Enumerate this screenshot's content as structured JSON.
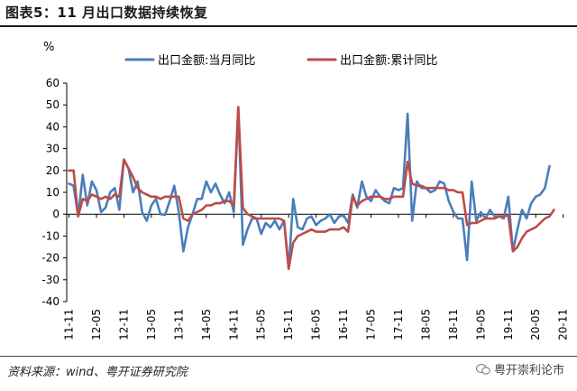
{
  "header": {
    "title": "图表5：11 月出口数据持续恢复"
  },
  "footer": {
    "source": "资料来源：wind、粤开证券研究院",
    "watermark": "粤开崇利论市"
  },
  "chart_data": {
    "type": "line",
    "unit": "%",
    "ylim": [
      -40,
      60
    ],
    "yticks": [
      60,
      50,
      40,
      30,
      20,
      10,
      0,
      -10,
      -20,
      -30,
      -40
    ],
    "x_tick_labels": [
      "11-11",
      "12-05",
      "12-11",
      "13-05",
      "13-11",
      "14-05",
      "14-11",
      "15-05",
      "15-11",
      "16-05",
      "16-11",
      "17-05",
      "17-11",
      "18-05",
      "18-11",
      "19-05",
      "19-11",
      "20-05",
      "20-11"
    ],
    "x_tick_interval_months": 6,
    "legend_position": "top",
    "grid": false,
    "colors": {
      "monthly": "#4a7ebb",
      "cumulative": "#be4b48"
    },
    "series": [
      {
        "name": "出口金额:当月同比",
        "values": [
          14,
          13,
          -1,
          18,
          4,
          15,
          11,
          1,
          3,
          10,
          12,
          2,
          25,
          21,
          10,
          15,
          1,
          -3,
          4,
          7,
          0,
          -0.3,
          6,
          13,
          1,
          -17,
          -6,
          0,
          7,
          7,
          15,
          10,
          14,
          9,
          5,
          10,
          1,
          49,
          -14,
          -7,
          -2,
          -2,
          -9,
          -4,
          -6,
          -3,
          -7,
          -3,
          -25,
          7,
          -6,
          -7,
          -2,
          -1,
          -5,
          -3,
          -2,
          0,
          -4,
          -1,
          -0.5,
          -4,
          9,
          3,
          15,
          8,
          6,
          11,
          8,
          6,
          5,
          12,
          11,
          12,
          46,
          -3,
          15,
          12,
          12,
          10,
          11,
          15,
          14,
          6,
          1,
          -2,
          -2,
          -21,
          15,
          -3,
          1,
          -2,
          2,
          -1,
          -1,
          -2,
          8,
          -17,
          -7,
          2,
          -2,
          5,
          8,
          9,
          12,
          22
        ]
      },
      {
        "name": "出口金额:累计同比",
        "values": [
          20,
          20,
          -1,
          7,
          6,
          9,
          8,
          7,
          8,
          7,
          9,
          8,
          25,
          21,
          17,
          12,
          10,
          9,
          8,
          8,
          7,
          8,
          8,
          8,
          8,
          -2,
          -3,
          0,
          1,
          2,
          4,
          4,
          5,
          5,
          6,
          6,
          4,
          49,
          3,
          0,
          -1,
          -2,
          -2,
          -2,
          -2,
          -2,
          -2,
          -3,
          -25,
          -13,
          -10,
          -9,
          -8,
          -7,
          -8,
          -8,
          -8,
          -7,
          -7,
          -7,
          -6,
          -8,
          8,
          4,
          6,
          7,
          8,
          8,
          8,
          7,
          7,
          8,
          8,
          8,
          24,
          14,
          13,
          13,
          12,
          12,
          12,
          12,
          12,
          11,
          11,
          10,
          10,
          -5,
          -4,
          -4,
          -3,
          -2,
          -2,
          -2,
          -1,
          -1,
          -0.5,
          -17,
          -15,
          -11,
          -8,
          -7,
          -6,
          -4,
          -2,
          -1,
          2
        ]
      }
    ]
  }
}
